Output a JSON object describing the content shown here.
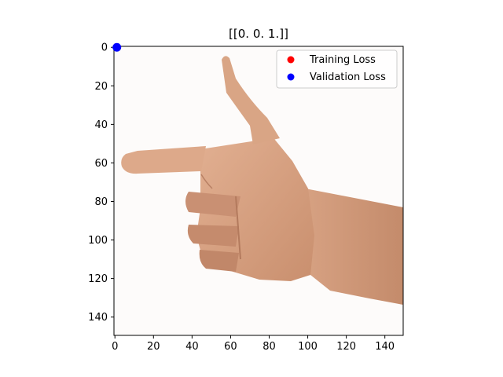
{
  "chart_data": {
    "type": "scatter",
    "title": "[[0. 0. 1.]]",
    "xlim": [
      -0.5,
      149.5
    ],
    "ylim": [
      149.5,
      -0.5
    ],
    "y_inverted": true,
    "x_ticks": [
      0,
      20,
      40,
      60,
      80,
      100,
      120,
      140
    ],
    "y_ticks": [
      0,
      20,
      40,
      60,
      80,
      100,
      120,
      140
    ],
    "background_image": "hand-gesture-pointing-left",
    "series": [
      {
        "name": "Training Loss",
        "color": "#ff0000",
        "points": []
      },
      {
        "name": "Validation Loss",
        "color": "#0000ff",
        "points": [
          [
            1,
            0
          ]
        ]
      }
    ],
    "legend_position": "top-right",
    "grid": false
  }
}
